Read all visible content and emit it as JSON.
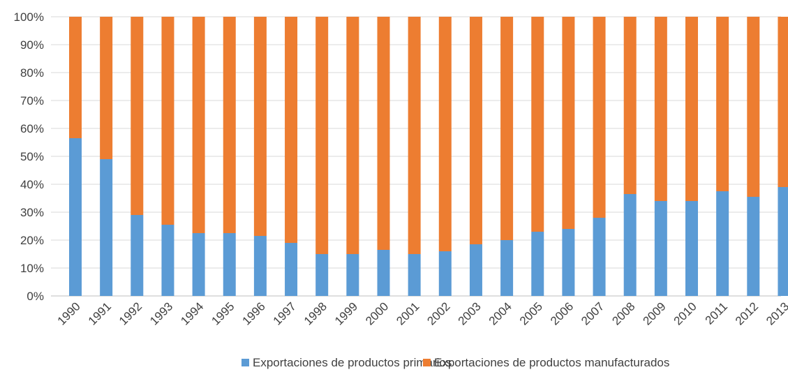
{
  "chart_data": {
    "type": "bar",
    "stacked": "percent",
    "categories": [
      "1990",
      "1991",
      "1992",
      "1993",
      "1994",
      "1995",
      "1996",
      "1997",
      "1998",
      "1999",
      "2000",
      "2001",
      "2002",
      "2003",
      "2004",
      "2005",
      "2006",
      "2007",
      "2008",
      "2009",
      "2010",
      "2011",
      "2012",
      "2013"
    ],
    "series": [
      {
        "name": "Exportaciones de productos primarios",
        "color": "#5b9bd5",
        "values": [
          56.5,
          49,
          29,
          25.5,
          22.5,
          22.5,
          21.5,
          19,
          15,
          15,
          16.5,
          15,
          16,
          18.5,
          20,
          23,
          24,
          28,
          36.5,
          34,
          34,
          37.5,
          35.5,
          39
        ]
      },
      {
        "name": "Exportaciones de productos manufacturados",
        "color": "#ed7d31",
        "values": [
          43.5,
          51,
          71,
          74.5,
          77.5,
          77.5,
          78.5,
          81,
          85,
          85,
          83.5,
          85,
          84,
          81.5,
          80,
          77,
          76,
          72,
          63.5,
          66,
          66,
          62.5,
          64.5,
          61
        ]
      }
    ],
    "title": "",
    "xlabel": "",
    "ylabel": "",
    "ylim": [
      0,
      100
    ],
    "yticks": [
      "0%",
      "10%",
      "20%",
      "30%",
      "40%",
      "50%",
      "60%",
      "70%",
      "80%",
      "90%",
      "100%"
    ],
    "grid": true,
    "legend_position": "bottom"
  }
}
